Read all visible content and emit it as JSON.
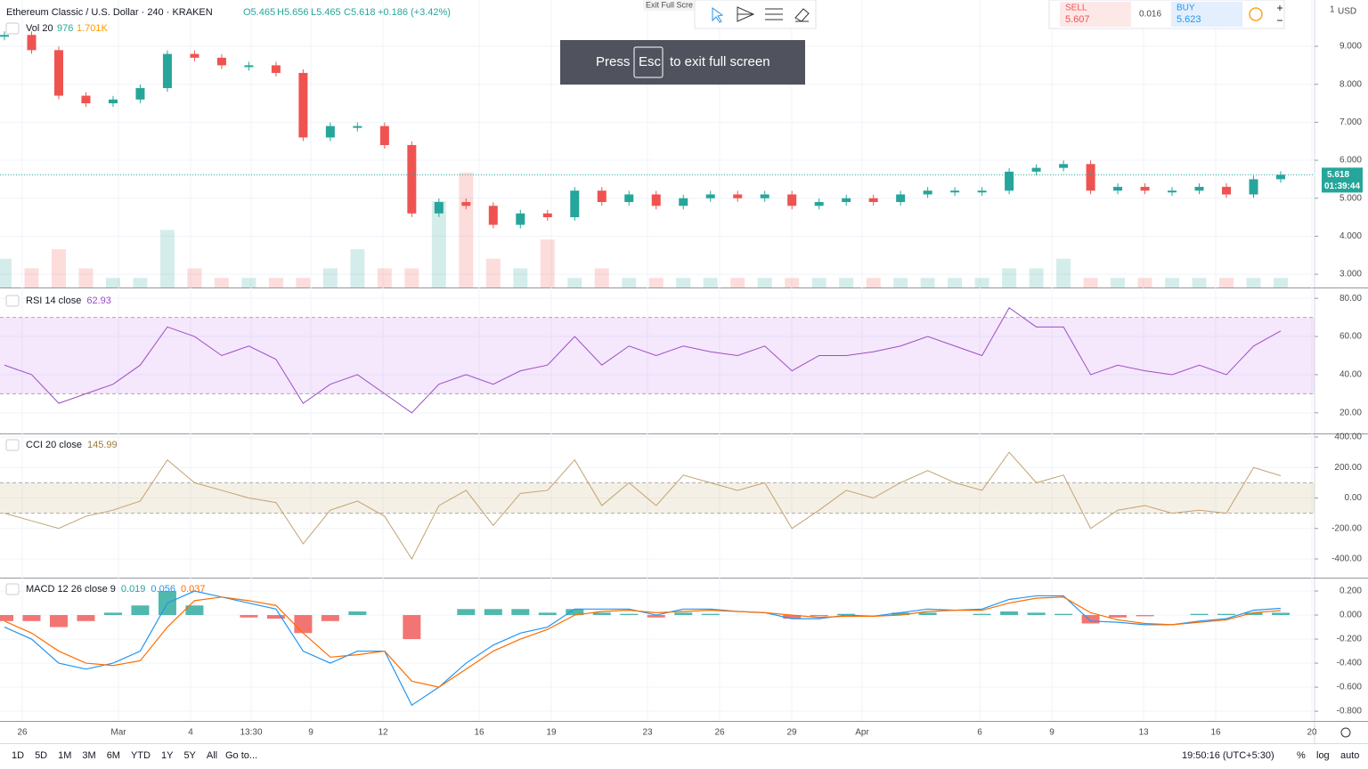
{
  "header": {
    "symbol": "Ethereum Classic / U.S. Dollar · 240 · KRAKEN",
    "open": "O5.465",
    "high": "H5.656",
    "low": "L5.465",
    "close": "C5.618",
    "change": "+0.186 (+3.42%)",
    "vol_title": "Vol 20",
    "vol_a": "976",
    "vol_b": "1.701K"
  },
  "toolbar": {
    "hint": "Exit Full Scre"
  },
  "trade": {
    "sell_label": "SELL",
    "sell": "5.607",
    "spread": "0.016",
    "buy_label": "BUY",
    "buy": "5.623"
  },
  "notice": {
    "press": "Press",
    "key": "Esc",
    "rest": "to exit full screen"
  },
  "axis": {
    "top": "1",
    "currency": "USD",
    "countdown": "01:39:44"
  },
  "panes": {
    "price": {
      "type": "candlestick",
      "ylim": [
        2.65,
        10.22
      ],
      "yticks": [
        {
          "value": 3,
          "label": "3.000"
        },
        {
          "value": 4,
          "label": "4.000"
        },
        {
          "value": 5,
          "label": "5.000"
        },
        {
          "value": 6,
          "label": "6.000"
        },
        {
          "value": 7,
          "label": "7.000"
        },
        {
          "value": 8,
          "label": "8.000"
        },
        {
          "value": 9,
          "label": "9.000"
        }
      ],
      "values": [
        9.3,
        8.9,
        7.7,
        7.5,
        7.6,
        7.9,
        8.8,
        8.7,
        8.5,
        8.5,
        8.3,
        6.6,
        6.9,
        6.9,
        6.4,
        4.6,
        4.9,
        4.8,
        4.3,
        4.6,
        4.5,
        5.2,
        4.9,
        5.1,
        4.8,
        5.0,
        5.1,
        5.0,
        5.1,
        4.8,
        4.9,
        5.0,
        4.9,
        5.1,
        5.2,
        5.2,
        5.2,
        5.7,
        5.8,
        5.9,
        5.2,
        5.3,
        5.2,
        5.2,
        5.3,
        5.1,
        5.5,
        5.618
      ],
      "up_color": "#26a69a",
      "down_color": "#ef5350"
    },
    "volume": {
      "type": "bar",
      "ylim": [
        0,
        30
      ],
      "values": [
        3,
        2,
        4,
        2,
        1,
        1,
        6,
        2,
        1,
        1,
        1,
        1,
        2,
        4,
        2,
        2,
        9,
        12,
        3,
        2,
        5,
        1,
        2,
        1,
        1,
        1,
        1,
        1,
        1,
        1,
        1,
        1,
        1,
        1,
        1,
        1,
        1,
        2,
        2,
        3,
        1,
        1,
        1,
        1,
        1,
        1,
        1,
        1
      ]
    },
    "rsi": {
      "type": "line",
      "title": "RSI 14 close",
      "last": "62.93",
      "color": "#9c4fc4",
      "band": [
        30,
        70
      ],
      "ylim": [
        9.2,
        85.2
      ],
      "yticks": [
        {
          "value": 20,
          "label": "20.00"
        },
        {
          "value": 40,
          "label": "40.00"
        },
        {
          "value": 60,
          "label": "60.00"
        },
        {
          "value": 80,
          "label": "80.00"
        }
      ],
      "values": [
        45,
        40,
        25,
        30,
        35,
        45,
        65,
        60,
        50,
        55,
        48,
        25,
        35,
        40,
        30,
        20,
        35,
        40,
        35,
        42,
        45,
        60,
        45,
        55,
        50,
        55,
        52,
        50,
        55,
        42,
        50,
        50,
        52,
        55,
        60,
        55,
        50,
        75,
        65,
        65,
        40,
        45,
        42,
        40,
        45,
        40,
        55,
        62.93
      ]
    },
    "cci": {
      "type": "line",
      "title": "CCI 20 close",
      "last": "145.99",
      "color": "#c2a373",
      "band": [
        -100,
        100
      ],
      "ylim": [
        -522.6,
        417.5
      ],
      "yticks": [
        {
          "value": -400,
          "label": "-400.00"
        },
        {
          "value": -200,
          "label": "-200.00"
        },
        {
          "value": 0,
          "label": "0.00"
        },
        {
          "value": 200,
          "label": "200.00"
        },
        {
          "value": 400,
          "label": "400.00"
        }
      ],
      "values": [
        -100,
        -150,
        -200,
        -120,
        -80,
        -20,
        250,
        100,
        50,
        0,
        -30,
        -300,
        -80,
        -20,
        -120,
        -400,
        -50,
        50,
        -180,
        30,
        50,
        250,
        -50,
        100,
        -50,
        150,
        100,
        50,
        100,
        -200,
        -80,
        50,
        0,
        100,
        180,
        100,
        50,
        300,
        100,
        150,
        -200,
        -80,
        -50,
        -100,
        -80,
        -100,
        200,
        145.99
      ]
    },
    "macd": {
      "type": "macd",
      "title": "MACD 12 26 close 9",
      "hist_last": "0.019",
      "macd_last": "0.056",
      "signal_last": "0.037",
      "ylim": [
        -0.881,
        0.304
      ],
      "yticks": [
        {
          "value": -0.8,
          "label": "-0.800"
        },
        {
          "value": -0.6,
          "label": "-0.600"
        },
        {
          "value": -0.4,
          "label": "-0.400"
        },
        {
          "value": -0.2,
          "label": "-0.200"
        },
        {
          "value": 0,
          "label": "0.000"
        },
        {
          "value": 0.2,
          "label": "0.200"
        }
      ],
      "series": [
        {
          "name": "MACD",
          "color": "#2196f3",
          "values": [
            -0.1,
            -0.2,
            -0.4,
            -0.45,
            -0.4,
            -0.3,
            0.1,
            0.2,
            0.15,
            0.1,
            0.05,
            -0.3,
            -0.4,
            -0.3,
            -0.3,
            -0.75,
            -0.6,
            -0.4,
            -0.25,
            -0.15,
            -0.1,
            0.05,
            0.05,
            0.05,
            0.0,
            0.05,
            0.05,
            0.03,
            0.02,
            -0.03,
            -0.03,
            0.0,
            -0.01,
            0.02,
            0.05,
            0.04,
            0.05,
            0.13,
            0.16,
            0.16,
            -0.05,
            -0.06,
            -0.08,
            -0.08,
            -0.05,
            -0.03,
            0.04,
            0.056
          ]
        },
        {
          "name": "Signal",
          "color": "#ff6d00",
          "values": [
            -0.05,
            -0.15,
            -0.3,
            -0.4,
            -0.42,
            -0.38,
            -0.1,
            0.12,
            0.15,
            0.12,
            0.08,
            -0.15,
            -0.35,
            -0.33,
            -0.3,
            -0.55,
            -0.6,
            -0.45,
            -0.3,
            -0.2,
            -0.12,
            0.0,
            0.03,
            0.04,
            0.02,
            0.03,
            0.04,
            0.03,
            0.02,
            0.0,
            -0.02,
            -0.01,
            -0.01,
            0.0,
            0.03,
            0.04,
            0.04,
            0.1,
            0.14,
            0.15,
            0.02,
            -0.04,
            -0.07,
            -0.08,
            -0.06,
            -0.04,
            0.02,
            0.037
          ]
        }
      ],
      "histogram": [
        -0.05,
        -0.05,
        -0.1,
        -0.05,
        0.02,
        0.08,
        0.2,
        0.08,
        0,
        -0.02,
        -0.03,
        -0.15,
        -0.05,
        0.03,
        0,
        -0.2,
        0,
        0.05,
        0.05,
        0.05,
        0.02,
        0.05,
        0.02,
        0.01,
        -0.02,
        0.02,
        0.01,
        0,
        0,
        -0.03,
        -0.01,
        0.01,
        0,
        0.02,
        0.02,
        0,
        0.01,
        0.03,
        0.02,
        0.01,
        -0.07,
        -0.02,
        -0.01,
        0,
        0.01,
        0.01,
        0.02,
        0.019
      ]
    }
  },
  "x_labels": [
    "26",
    "Mar",
    "4",
    "13:30",
    "9",
    "12",
    "16",
    "19",
    "23",
    "26",
    "29",
    "Apr",
    "6",
    "9",
    "13",
    "16",
    "20"
  ],
  "footer": {
    "ranges": [
      "1D",
      "5D",
      "1M",
      "3M",
      "6M",
      "YTD",
      "1Y",
      "5Y",
      "All"
    ],
    "goto": "Go to...",
    "clock": "19:50:16 (UTC+5:30)",
    "percent": "%",
    "log": "log",
    "auto": "auto"
  }
}
